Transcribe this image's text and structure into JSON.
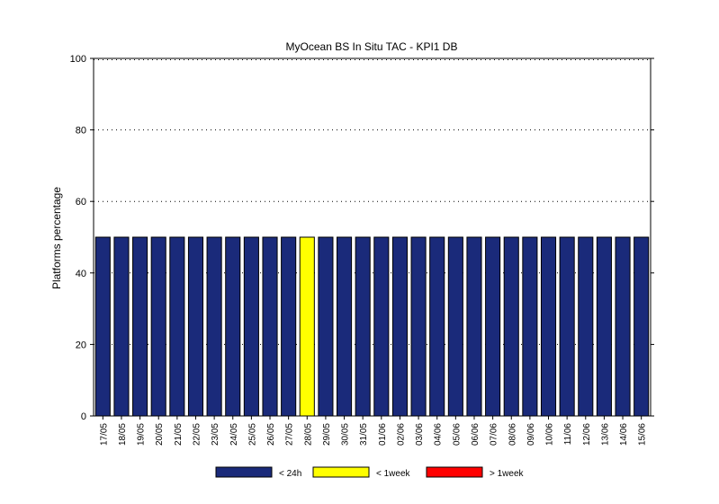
{
  "chart_data": {
    "type": "bar",
    "title": "MyOcean  BS In Situ TAC - KPI1  DB",
    "ylabel": "Platforms percentage",
    "xlabel": "",
    "ylim": [
      0,
      100
    ],
    "yticks": [
      0,
      20,
      40,
      60,
      80,
      100
    ],
    "grid": "horizontal-dotted",
    "legend_position": "bottom",
    "categories": [
      "17/05",
      "18/05",
      "19/05",
      "20/05",
      "21/05",
      "22/05",
      "23/05",
      "24/05",
      "25/05",
      "26/05",
      "27/05",
      "28/05",
      "29/05",
      "30/05",
      "31/05",
      "01/06",
      "02/06",
      "03/06",
      "04/06",
      "05/06",
      "06/06",
      "07/06",
      "08/06",
      "09/06",
      "10/06",
      "11/06",
      "12/06",
      "13/06",
      "14/06",
      "15/06"
    ],
    "series": [
      {
        "name": "< 24h",
        "color": "#1a2a7a",
        "values": [
          50,
          50,
          50,
          50,
          50,
          50,
          50,
          50,
          50,
          50,
          50,
          0,
          50,
          50,
          50,
          50,
          50,
          50,
          50,
          50,
          50,
          50,
          50,
          50,
          50,
          50,
          50,
          50,
          50,
          50
        ]
      },
      {
        "name": "< 1week",
        "color": "#ffff00",
        "values": [
          0,
          0,
          0,
          0,
          0,
          0,
          0,
          0,
          0,
          0,
          0,
          50,
          0,
          0,
          0,
          0,
          0,
          0,
          0,
          0,
          0,
          0,
          0,
          0,
          0,
          0,
          0,
          0,
          0,
          0
        ]
      },
      {
        "name": "> 1week",
        "color": "#ff0000",
        "values": [
          0,
          0,
          0,
          0,
          0,
          0,
          0,
          0,
          0,
          0,
          0,
          0,
          0,
          0,
          0,
          0,
          0,
          0,
          0,
          0,
          0,
          0,
          0,
          0,
          0,
          0,
          0,
          0,
          0,
          0
        ]
      }
    ]
  }
}
